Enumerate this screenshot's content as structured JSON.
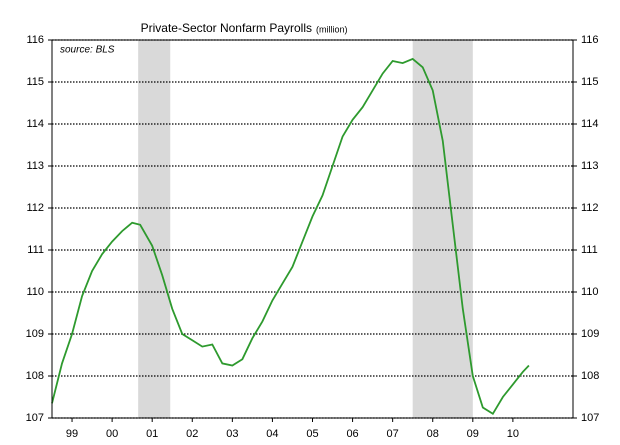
{
  "chart_data": {
    "type": "line",
    "title": "Private-Sector Nonfarm Payrolls",
    "unit": "(million)",
    "source": "source: BLS",
    "x": [
      1999.0,
      1999.25,
      1999.5,
      1999.75,
      2000.0,
      2000.25,
      2000.5,
      2000.75,
      2001.0,
      2001.2,
      2001.5,
      2001.75,
      2002.0,
      2002.25,
      2002.5,
      2002.75,
      2003.0,
      2003.25,
      2003.5,
      2003.75,
      2004.0,
      2004.25,
      2004.5,
      2004.75,
      2005.0,
      2005.25,
      2005.5,
      2005.75,
      2006.0,
      2006.25,
      2006.5,
      2006.75,
      2007.0,
      2007.25,
      2007.5,
      2007.75,
      2008.0,
      2008.25,
      2008.5,
      2008.75,
      2009.0,
      2009.25,
      2009.5,
      2009.75,
      2010.0,
      2010.25,
      2010.5,
      2010.75,
      2010.9
    ],
    "series": [
      {
        "color": "#2e9a2e",
        "values": [
          107.35,
          108.3,
          109.0,
          109.9,
          110.5,
          110.9,
          111.2,
          111.45,
          111.65,
          111.6,
          111.1,
          110.4,
          109.6,
          109.0,
          108.85,
          108.7,
          108.75,
          108.3,
          108.25,
          108.4,
          108.9,
          109.3,
          109.8,
          110.2,
          110.6,
          111.2,
          111.8,
          112.3,
          113.0,
          113.7,
          114.1,
          114.4,
          114.8,
          115.2,
          115.5,
          115.45,
          115.55,
          115.35,
          114.8,
          113.6,
          111.6,
          109.6,
          108.0,
          107.25,
          107.1,
          107.5,
          107.8,
          108.1,
          108.25
        ]
      }
    ],
    "recessions": [
      [
        2001.15,
        2001.95
      ],
      [
        2008.0,
        2009.5
      ]
    ],
    "recession_color": "#d9d9d9",
    "xlim": [
      1999,
      2012
    ],
    "ylim": [
      107,
      116
    ],
    "yticks": [
      107,
      108,
      109,
      110,
      111,
      112,
      113,
      114,
      115,
      116
    ],
    "xticks": [
      {
        "value": 1999.5,
        "label": "99"
      },
      {
        "value": 2000.5,
        "label": "00"
      },
      {
        "value": 2001.5,
        "label": "01"
      },
      {
        "value": 2002.5,
        "label": "02"
      },
      {
        "value": 2003.5,
        "label": "03"
      },
      {
        "value": 2004.5,
        "label": "04"
      },
      {
        "value": 2005.5,
        "label": "05"
      },
      {
        "value": 2006.5,
        "label": "06"
      },
      {
        "value": 2007.5,
        "label": "07"
      },
      {
        "value": 2008.5,
        "label": "08"
      },
      {
        "value": 2009.5,
        "label": "09"
      },
      {
        "value": 2010.5,
        "label": "10"
      }
    ],
    "grid": true
  }
}
